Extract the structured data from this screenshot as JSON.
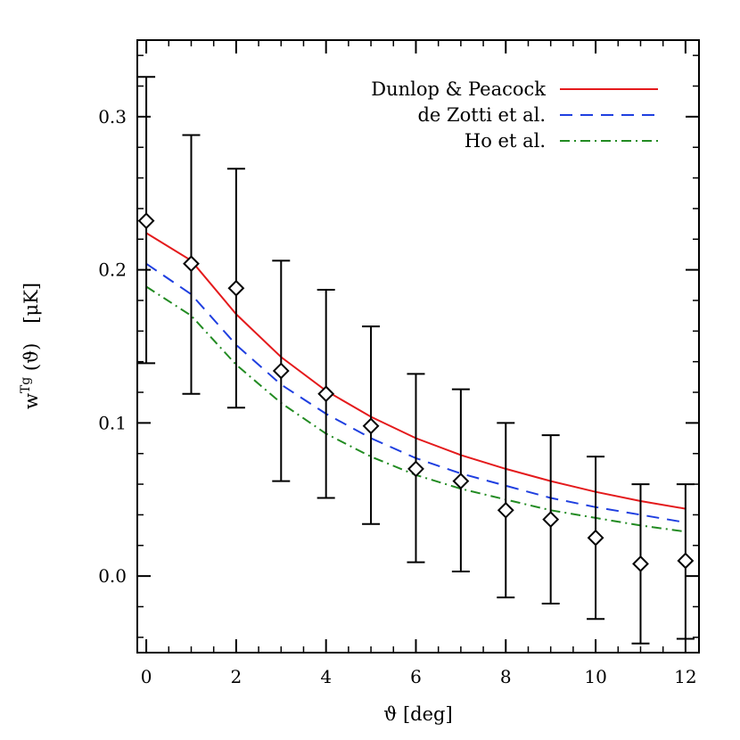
{
  "chart_data": {
    "type": "scatter",
    "xlabel": "ϑ  [deg]",
    "ylabel": {
      "main": "w",
      "superscript": "Tg",
      "argument": " (ϑ)",
      "unit": "[μK]"
    },
    "xlim": [
      -0.2,
      12.3
    ],
    "ylim": [
      -0.05,
      0.35
    ],
    "xticks": [
      0,
      2,
      4,
      6,
      8,
      10,
      12
    ],
    "xtick_labels": [
      "0",
      "2",
      "4",
      "6",
      "8",
      "10",
      "12"
    ],
    "yticks": [
      0.0,
      0.1,
      0.2,
      0.3
    ],
    "ytick_labels": [
      "0.0",
      "0.1",
      "0.2",
      "0.3"
    ],
    "grid": false,
    "legend_position": "top-right",
    "measurements": {
      "marker": "diamond",
      "color": "#000000",
      "x": [
        0,
        1,
        2,
        3,
        4,
        5,
        6,
        7,
        8,
        9,
        10,
        11,
        12
      ],
      "y": [
        0.232,
        0.204,
        0.188,
        0.134,
        0.119,
        0.098,
        0.07,
        0.062,
        0.043,
        0.037,
        0.025,
        0.008,
        0.01
      ],
      "y_low": [
        0.139,
        0.119,
        0.11,
        0.062,
        0.051,
        0.034,
        0.009,
        0.003,
        -0.014,
        -0.018,
        -0.028,
        -0.044,
        -0.041
      ],
      "y_high": [
        0.326,
        0.288,
        0.266,
        0.206,
        0.187,
        0.163,
        0.132,
        0.122,
        0.1,
        0.092,
        0.078,
        0.06,
        0.06
      ]
    },
    "series": [
      {
        "name": "Dunlop & Peacock",
        "color": "#e41a1c",
        "dash": "solid",
        "x": [
          0,
          1,
          2,
          3,
          4,
          5,
          6,
          7,
          8,
          9,
          10,
          11,
          12
        ],
        "y": [
          0.224,
          0.206,
          0.171,
          0.143,
          0.121,
          0.104,
          0.09,
          0.079,
          0.07,
          0.062,
          0.055,
          0.049,
          0.044
        ]
      },
      {
        "name": "de Zotti et al.",
        "color": "#1f3fe0",
        "dash": "dashed",
        "x": [
          0,
          1,
          2,
          3,
          4,
          5,
          6,
          7,
          8,
          9,
          10,
          11,
          12
        ],
        "y": [
          0.204,
          0.184,
          0.151,
          0.125,
          0.106,
          0.09,
          0.077,
          0.067,
          0.059,
          0.051,
          0.045,
          0.04,
          0.035
        ]
      },
      {
        "name": "Ho et al.",
        "color": "#228b22",
        "dash": "dashdot",
        "x": [
          0,
          1,
          2,
          3,
          4,
          5,
          6,
          7,
          8,
          9,
          10,
          11,
          12
        ],
        "y": [
          0.189,
          0.17,
          0.138,
          0.113,
          0.093,
          0.078,
          0.066,
          0.057,
          0.05,
          0.043,
          0.038,
          0.033,
          0.029
        ]
      }
    ]
  }
}
